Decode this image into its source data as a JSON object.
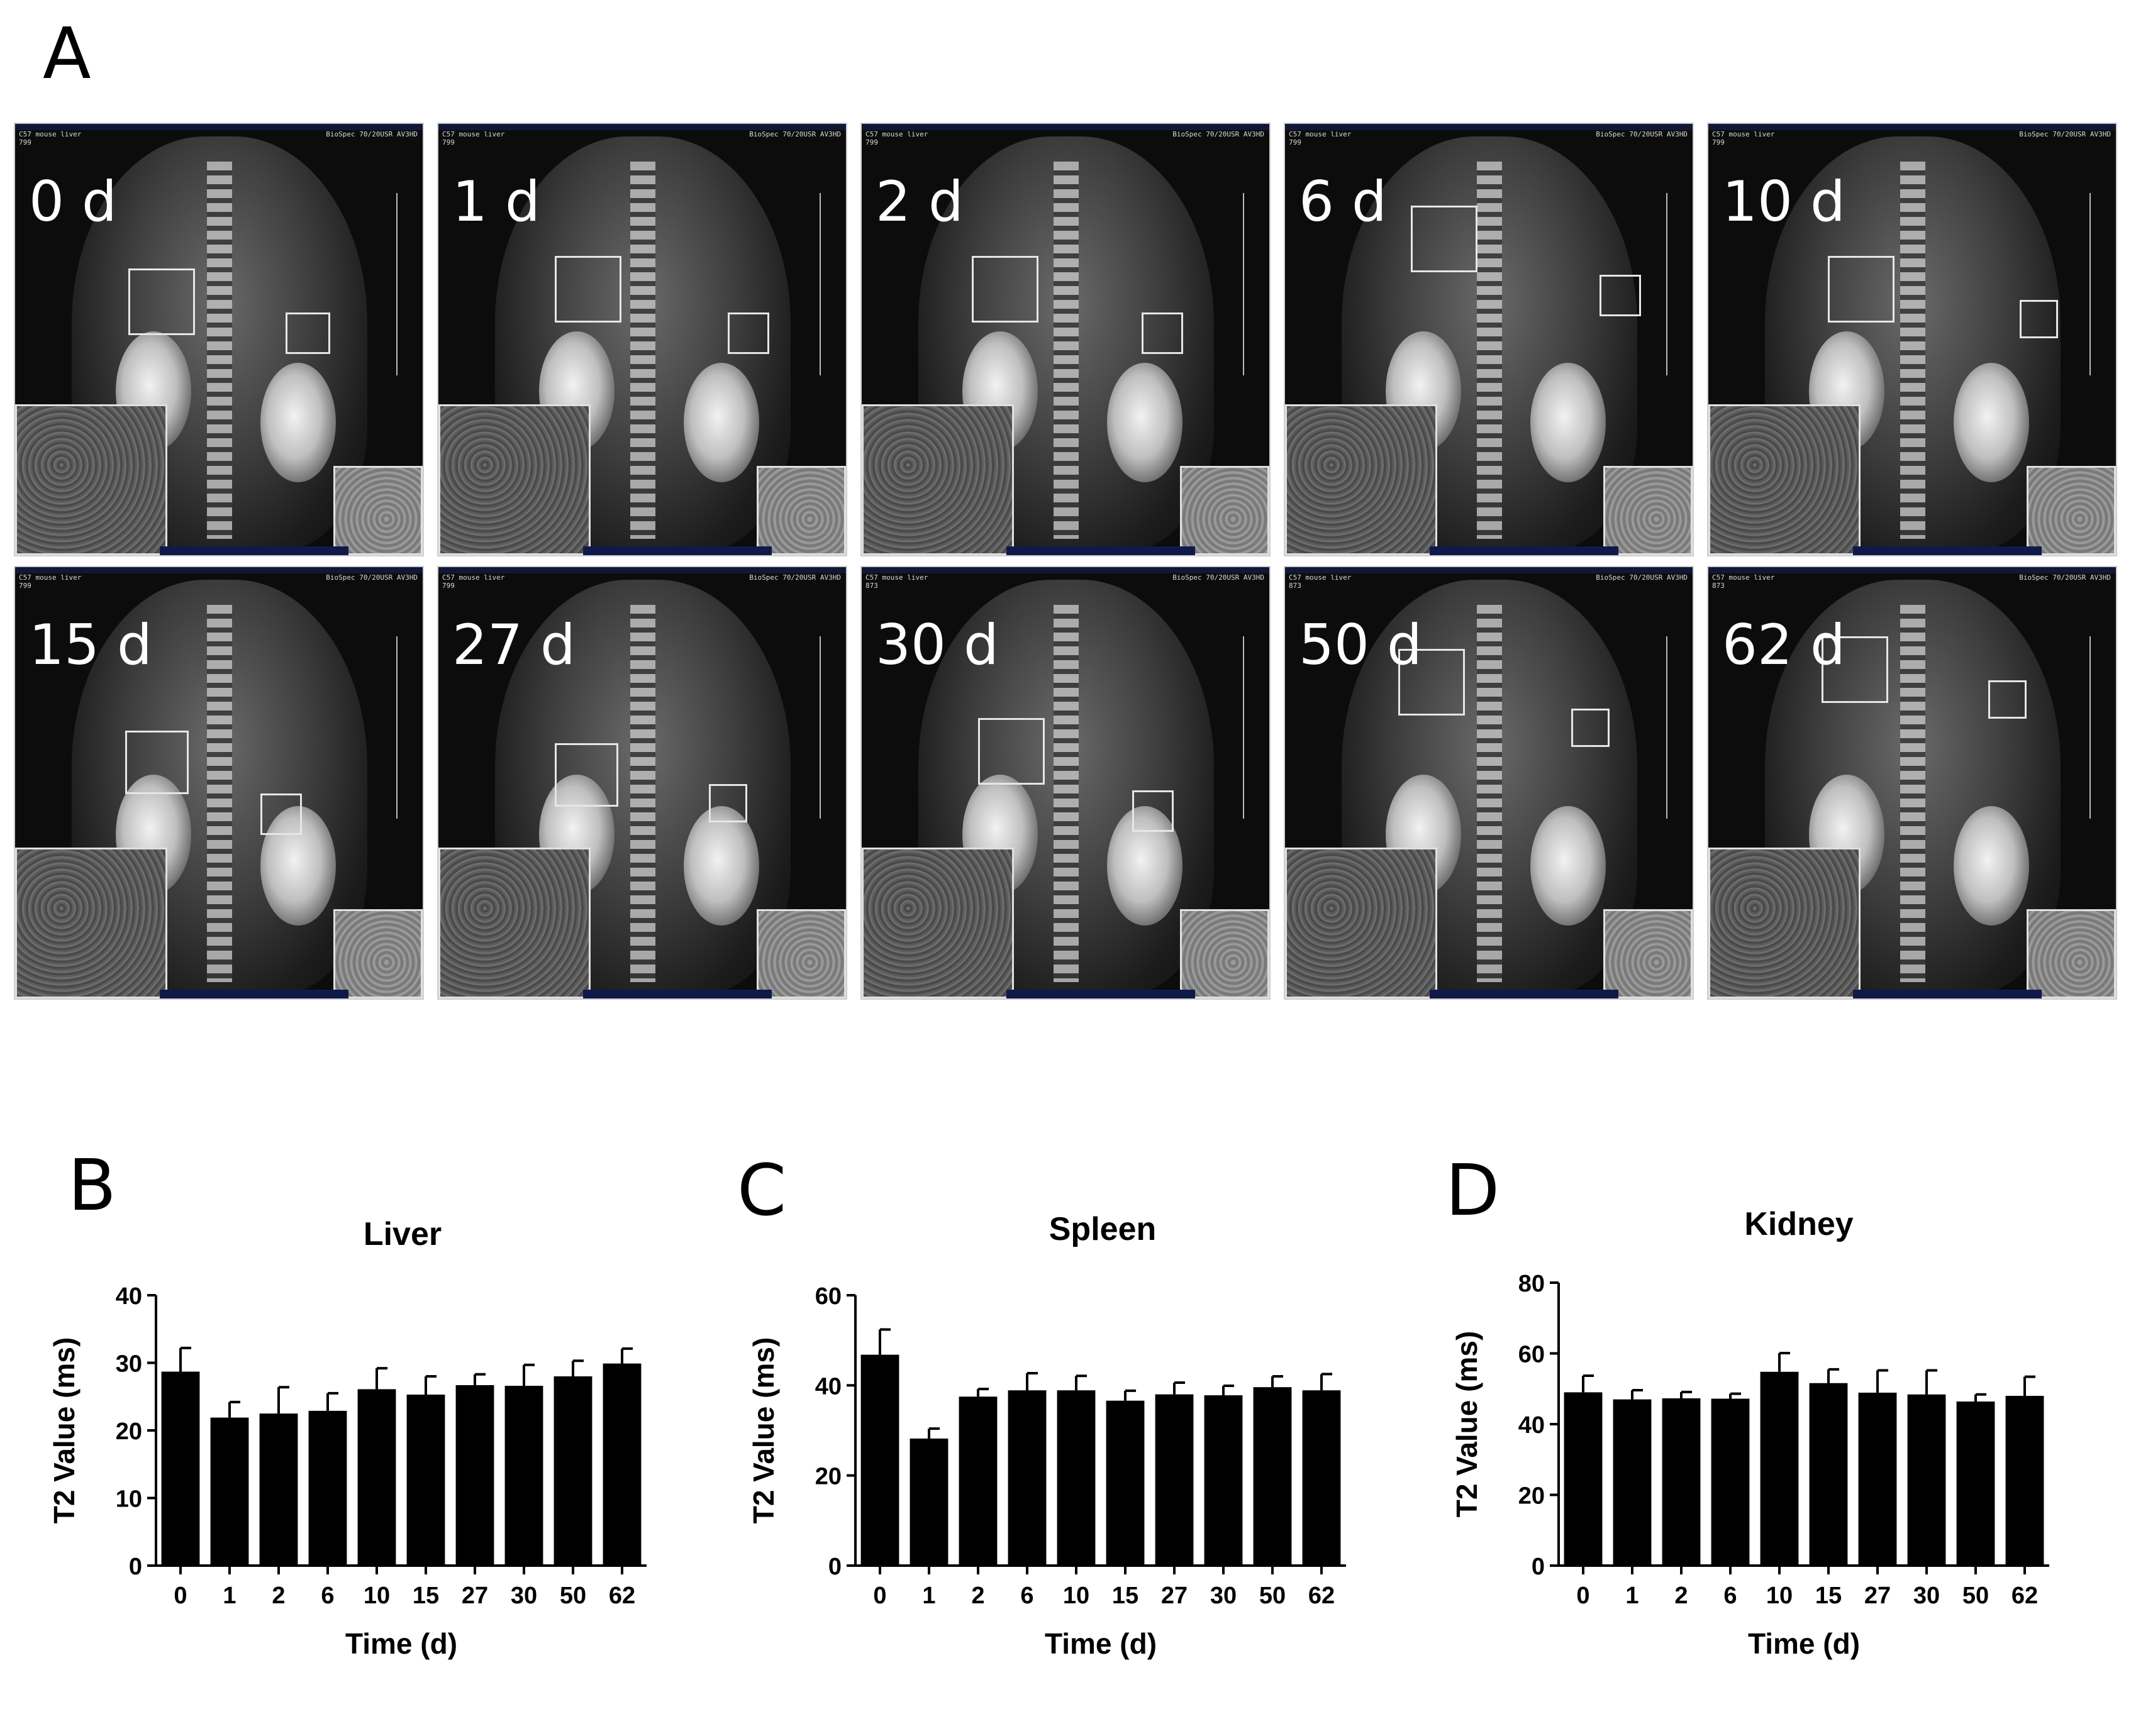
{
  "panel_labels": {
    "a": "A",
    "b": "B",
    "c": "C",
    "d": "D"
  },
  "mri_panels": [
    {
      "day_label": "0 d",
      "header_left": "C57 mouse liver\n799",
      "header_right": "BioSpec 70/20USR AV3HD"
    },
    {
      "day_label": "1 d",
      "header_left": "C57 mouse liver\n799",
      "header_right": "BioSpec 70/20USR AV3HD"
    },
    {
      "day_label": "2 d",
      "header_left": "C57 mouse liver\n799",
      "header_right": "BioSpec 70/20USR AV3HD"
    },
    {
      "day_label": "6 d",
      "header_left": "C57 mouse liver\n799",
      "header_right": "BioSpec 70/20USR AV3HD"
    },
    {
      "day_label": "10 d",
      "header_left": "C57 mouse liver\n799",
      "header_right": "BioSpec 70/20USR AV3HD"
    },
    {
      "day_label": "15 d",
      "header_left": "C57 mouse liver\n799",
      "header_right": "BioSpec 70/20USR AV3HD"
    },
    {
      "day_label": "27 d",
      "header_left": "C57 mouse liver\n799",
      "header_right": "BioSpec 70/20USR AV3HD"
    },
    {
      "day_label": "30 d",
      "header_left": "C57 mouse liver\n873",
      "header_right": "BioSpec 70/20USR AV3HD"
    },
    {
      "day_label": "50 d",
      "header_left": "C57 mouse liver\n873",
      "header_right": "BioSpec 70/20USR AV3HD"
    },
    {
      "day_label": "62 d",
      "header_left": "C57 mouse liver\n873",
      "header_right": "BioSpec 70/20USR AV3HD"
    }
  ],
  "chart_data": [
    {
      "type": "bar",
      "title": "Liver",
      "xlabel": "Time (d)",
      "ylabel": "T2 Value (ms)",
      "ylim": [
        0,
        40
      ],
      "yticks": [
        0,
        10,
        20,
        30,
        40
      ],
      "categories": [
        "0",
        "1",
        "2",
        "6",
        "10",
        "15",
        "27",
        "30",
        "50",
        "62"
      ],
      "values": [
        28.7,
        21.9,
        22.5,
        22.9,
        26.1,
        25.3,
        26.7,
        26.6,
        28.0,
        29.9
      ],
      "errors": [
        3.5,
        2.3,
        3.9,
        2.6,
        3.1,
        2.7,
        1.6,
        3.1,
        2.3,
        2.2
      ]
    },
    {
      "type": "bar",
      "title": "Spleen",
      "xlabel": "Time (d)",
      "ylabel": "T2 Value (ms)",
      "ylim": [
        0,
        60
      ],
      "yticks": [
        0,
        20,
        40,
        60
      ],
      "categories": [
        "0",
        "1",
        "2",
        "6",
        "10",
        "15",
        "27",
        "30",
        "50",
        "62"
      ],
      "values": [
        46.8,
        28.2,
        37.5,
        38.9,
        38.9,
        36.6,
        38.0,
        37.8,
        39.6,
        38.9
      ],
      "errors": [
        5.6,
        2.2,
        1.7,
        3.8,
        3.2,
        2.2,
        2.6,
        2.1,
        2.4,
        3.6
      ]
    },
    {
      "type": "bar",
      "title": "Kidney",
      "xlabel": "Time (d)",
      "ylabel": "T2 Value (ms)",
      "ylim": [
        0,
        80
      ],
      "yticks": [
        0,
        20,
        40,
        60,
        80
      ],
      "categories": [
        "0",
        "1",
        "2",
        "6",
        "10",
        "15",
        "27",
        "30",
        "50",
        "62"
      ],
      "values": [
        49.0,
        47.0,
        47.3,
        47.2,
        54.8,
        51.6,
        48.9,
        48.4,
        46.4,
        48.0
      ],
      "errors": [
        4.7,
        2.6,
        1.8,
        1.4,
        5.3,
        3.9,
        6.3,
        6.8,
        2.0,
        5.4
      ]
    }
  ]
}
